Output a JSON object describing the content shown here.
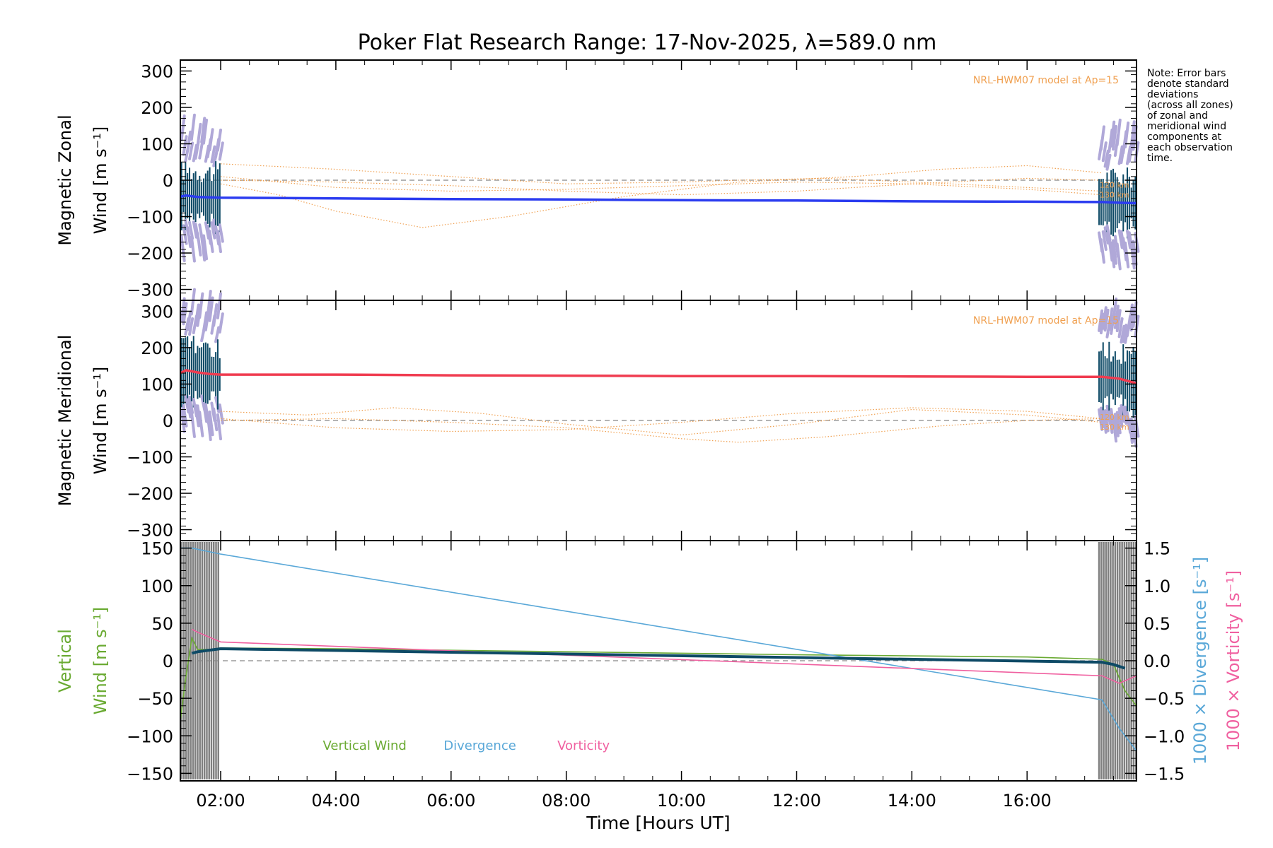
{
  "title": "Poker Flat Research Range: 17-Nov-2025, λ=589.0 nm",
  "note": [
    "Note: Error bars",
    "denote standard",
    "deviations",
    "(across all zones)",
    "of zonal and",
    "meridional wind",
    "components at",
    "each observation",
    "time."
  ],
  "model_label": "NRL-HWM07 model at Ap=15",
  "colors": {
    "zonal": "#2b3cf0",
    "meridional": "#f03c50",
    "model": "#f0a050",
    "error_bars": "#b0a8d8",
    "dark_bars": "#0e4a66",
    "vertical": "#6aaa32",
    "divergence": "#5aa8d8",
    "vorticity": "#f060a0",
    "grey_bars": "#808080"
  },
  "chart_data": [
    {
      "type": "line",
      "name": "zonal",
      "ylabel_line1": "Magnetic Zonal",
      "ylabel_line2": "Wind [m s⁻¹]",
      "ylim": [
        -330,
        330
      ],
      "yticks": [
        300,
        200,
        100,
        0,
        -100,
        -200,
        -300
      ],
      "xlim": [
        1.3,
        17.9
      ],
      "model_alt_labels": [
        "120 km",
        "130 km"
      ],
      "series": [
        {
          "role": "measured",
          "x": [
            1.3,
            1.4,
            1.6,
            1.8,
            2.0,
            4.0,
            6.0,
            8.0,
            10.0,
            12.0,
            14.0,
            16.0,
            17.3,
            17.6,
            17.9
          ],
          "y": [
            -45,
            -42,
            -46,
            -47,
            -48,
            -50,
            -52,
            -53,
            -55,
            -56,
            -58,
            -59,
            -60,
            -62,
            -63
          ]
        },
        {
          "role": "model",
          "x": [
            2.0,
            3.0,
            4.0,
            5.5,
            7.0,
            9.0,
            11.0,
            13.0,
            14.5,
            16.0,
            17.3
          ],
          "y": [
            -10,
            -40,
            -85,
            -130,
            -100,
            -45,
            -5,
            10,
            30,
            40,
            20
          ]
        },
        {
          "role": "model",
          "x": [
            2.0,
            4.0,
            6.0,
            8.0,
            10.0,
            11.0,
            12.5,
            14.0,
            16.0,
            17.3
          ],
          "y": [
            45,
            30,
            10,
            -10,
            -5,
            0,
            5,
            -5,
            -20,
            -30
          ]
        },
        {
          "role": "model",
          "x": [
            2.0,
            4.0,
            6.0,
            8.0,
            10.0,
            12.0,
            14.0,
            16.0,
            17.3
          ],
          "y": [
            10,
            -20,
            -30,
            -25,
            -15,
            -5,
            -10,
            -25,
            -40
          ]
        },
        {
          "role": "model",
          "x": [
            2.0,
            4.0,
            6.0,
            8.0,
            10.0,
            12.0,
            14.0,
            16.0,
            17.3
          ],
          "y": [
            0,
            -5,
            -15,
            -30,
            -40,
            -30,
            -10,
            5,
            0
          ]
        }
      ]
    },
    {
      "type": "line",
      "name": "meridional",
      "ylabel_line1": "Magnetic Meridional",
      "ylabel_line2": "Wind [m s⁻¹]",
      "ylim": [
        -330,
        330
      ],
      "yticks": [
        300,
        200,
        100,
        0,
        -100,
        -200,
        -300
      ],
      "xlim": [
        1.3,
        17.9
      ],
      "model_alt_labels": [
        "120 km",
        "130 km"
      ],
      "series": [
        {
          "role": "measured",
          "x": [
            1.3,
            1.4,
            1.6,
            1.8,
            2.0,
            4.0,
            6.0,
            8.0,
            10.0,
            12.0,
            14.0,
            16.0,
            17.3,
            17.6,
            17.9
          ],
          "y": [
            130,
            138,
            132,
            128,
            126,
            126,
            124,
            123,
            122,
            122,
            121,
            120,
            120,
            115,
            102
          ]
        },
        {
          "role": "model",
          "x": [
            2.0,
            3.5,
            5.0,
            6.5,
            8.0,
            10.0,
            12.0,
            14.0,
            16.0,
            17.3
          ],
          "y": [
            25,
            15,
            35,
            20,
            -10,
            -40,
            -10,
            30,
            15,
            -5
          ]
        },
        {
          "role": "model",
          "x": [
            2.0,
            4.0,
            6.0,
            8.0,
            10.0,
            12.0,
            14.0,
            16.0,
            17.3
          ],
          "y": [
            5,
            -20,
            -30,
            -25,
            -5,
            20,
            35,
            25,
            5
          ]
        },
        {
          "role": "model",
          "x": [
            2.0,
            4.0,
            6.0,
            8.0,
            10.0,
            11.0,
            12.5,
            14.5,
            16.0,
            17.3
          ],
          "y": [
            0,
            5,
            -5,
            -20,
            -50,
            -60,
            -45,
            -15,
            0,
            5
          ]
        }
      ]
    },
    {
      "type": "line",
      "name": "vertical",
      "ylabel_line1": "Vertical",
      "ylabel_line2": "Wind [m s⁻¹]",
      "ylim": [
        -160,
        160
      ],
      "yticks": [
        150,
        100,
        50,
        0,
        -50,
        -100,
        -150
      ],
      "y2label_div": "1000 × Divergence [s⁻¹]",
      "y2label_vort": "1000 × Vorticity [s⁻¹]",
      "y2lim": [
        -1.6,
        1.6
      ],
      "y2ticks": [
        1.5,
        1.0,
        0.5,
        0.0,
        -0.5,
        -1.0,
        -1.5
      ],
      "xlim": [
        1.3,
        17.9
      ],
      "xlabel": "Time [Hours UT]",
      "xticks": [
        2,
        4,
        6,
        8,
        10,
        12,
        14,
        16
      ],
      "xticklabels": [
        "02:00",
        "04:00",
        "06:00",
        "08:00",
        "10:00",
        "12:00",
        "14:00",
        "16:00"
      ],
      "legend": [
        "Vertical Wind",
        "Divergence",
        "Vorticity"
      ],
      "series": [
        {
          "role": "vertical",
          "axis": "left",
          "x": [
            1.3,
            1.4,
            1.5,
            1.6,
            1.8,
            2.0,
            4.0,
            8.0,
            12.0,
            16.0,
            17.3,
            17.5,
            17.7,
            17.9
          ],
          "y": [
            -80,
            -20,
            30,
            15,
            15,
            17,
            16,
            12,
            8,
            5,
            2,
            -5,
            -40,
            -60
          ]
        },
        {
          "role": "divergence",
          "axis": "right",
          "x": [
            1.3,
            1.5,
            2.0,
            17.3,
            17.6,
            17.9
          ],
          "y": [
            1.5,
            1.5,
            1.42,
            -0.52,
            -0.9,
            -1.2
          ]
        },
        {
          "role": "vorticity",
          "axis": "right",
          "x": [
            1.5,
            1.6,
            2.0,
            17.3,
            17.6,
            17.9
          ],
          "y": [
            0.42,
            0.38,
            0.25,
            -0.2,
            -0.3,
            -0.2
          ]
        },
        {
          "role": "dark",
          "axis": "left",
          "x": [
            1.5,
            1.6,
            1.8,
            2.0,
            17.3,
            17.5,
            17.7
          ],
          "y": [
            10,
            12,
            14,
            16,
            -2,
            -5,
            -10
          ]
        }
      ]
    }
  ]
}
